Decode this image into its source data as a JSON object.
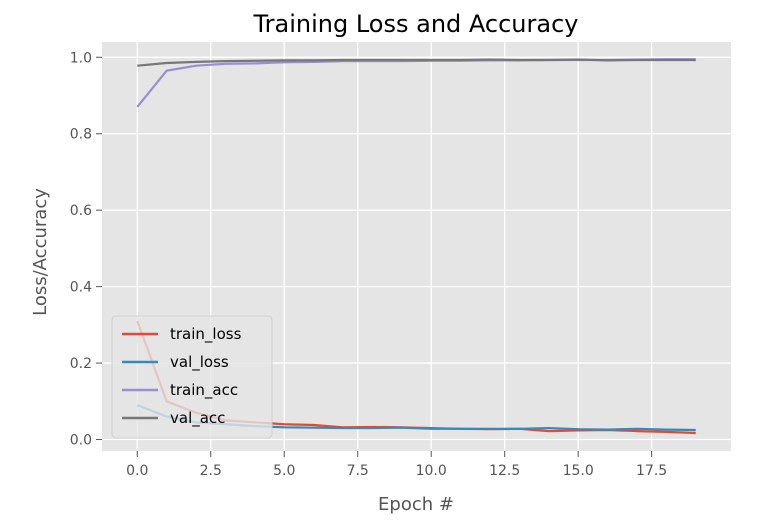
{
  "chart_data": {
    "type": "line",
    "title": "Training Loss and Accuracy",
    "xlabel": "Epoch #",
    "ylabel": "Loss/Accuracy",
    "xlim": [
      -1.2,
      20.2
    ],
    "ylim": [
      -0.03,
      1.04
    ],
    "xticks": [
      0.0,
      2.5,
      5.0,
      7.5,
      10.0,
      12.5,
      15.0,
      17.5
    ],
    "xtick_labels": [
      "0.0",
      "2.5",
      "5.0",
      "7.5",
      "10.0",
      "12.5",
      "15.0",
      "17.5"
    ],
    "yticks": [
      0.0,
      0.2,
      0.4,
      0.6,
      0.8,
      1.0
    ],
    "ytick_labels": [
      "0.0",
      "0.2",
      "0.4",
      "0.6",
      "0.8",
      "1.0"
    ],
    "grid": true,
    "legend_position": "bottom-left",
    "x": [
      0,
      1,
      2,
      3,
      4,
      5,
      6,
      7,
      8,
      9,
      10,
      11,
      12,
      13,
      14,
      15,
      16,
      17,
      18,
      19
    ],
    "series": [
      {
        "name": "train_loss",
        "color": "#E24A33",
        "values": [
          0.31,
          0.1,
          0.07,
          0.05,
          0.045,
          0.04,
          0.038,
          0.032,
          0.033,
          0.032,
          0.03,
          0.028,
          0.027,
          0.028,
          0.022,
          0.024,
          0.025,
          0.022,
          0.02,
          0.017
        ]
      },
      {
        "name": "val_loss",
        "color": "#348ABD",
        "values": [
          0.09,
          0.06,
          0.045,
          0.04,
          0.035,
          0.032,
          0.031,
          0.03,
          0.03,
          0.031,
          0.028,
          0.028,
          0.028,
          0.028,
          0.03,
          0.027,
          0.026,
          0.028,
          0.026,
          0.025
        ]
      },
      {
        "name": "train_acc",
        "color": "#988ED5",
        "values": [
          0.87,
          0.965,
          0.978,
          0.983,
          0.984,
          0.987,
          0.988,
          0.99,
          0.99,
          0.99,
          0.991,
          0.991,
          0.992,
          0.992,
          0.993,
          0.993,
          0.993,
          0.994,
          0.995,
          0.995
        ]
      },
      {
        "name": "val_acc",
        "color": "#777777",
        "values": [
          0.978,
          0.985,
          0.988,
          0.99,
          0.991,
          0.992,
          0.992,
          0.993,
          0.993,
          0.993,
          0.993,
          0.993,
          0.994,
          0.993,
          0.993,
          0.994,
          0.992,
          0.993,
          0.993,
          0.993
        ]
      }
    ]
  }
}
